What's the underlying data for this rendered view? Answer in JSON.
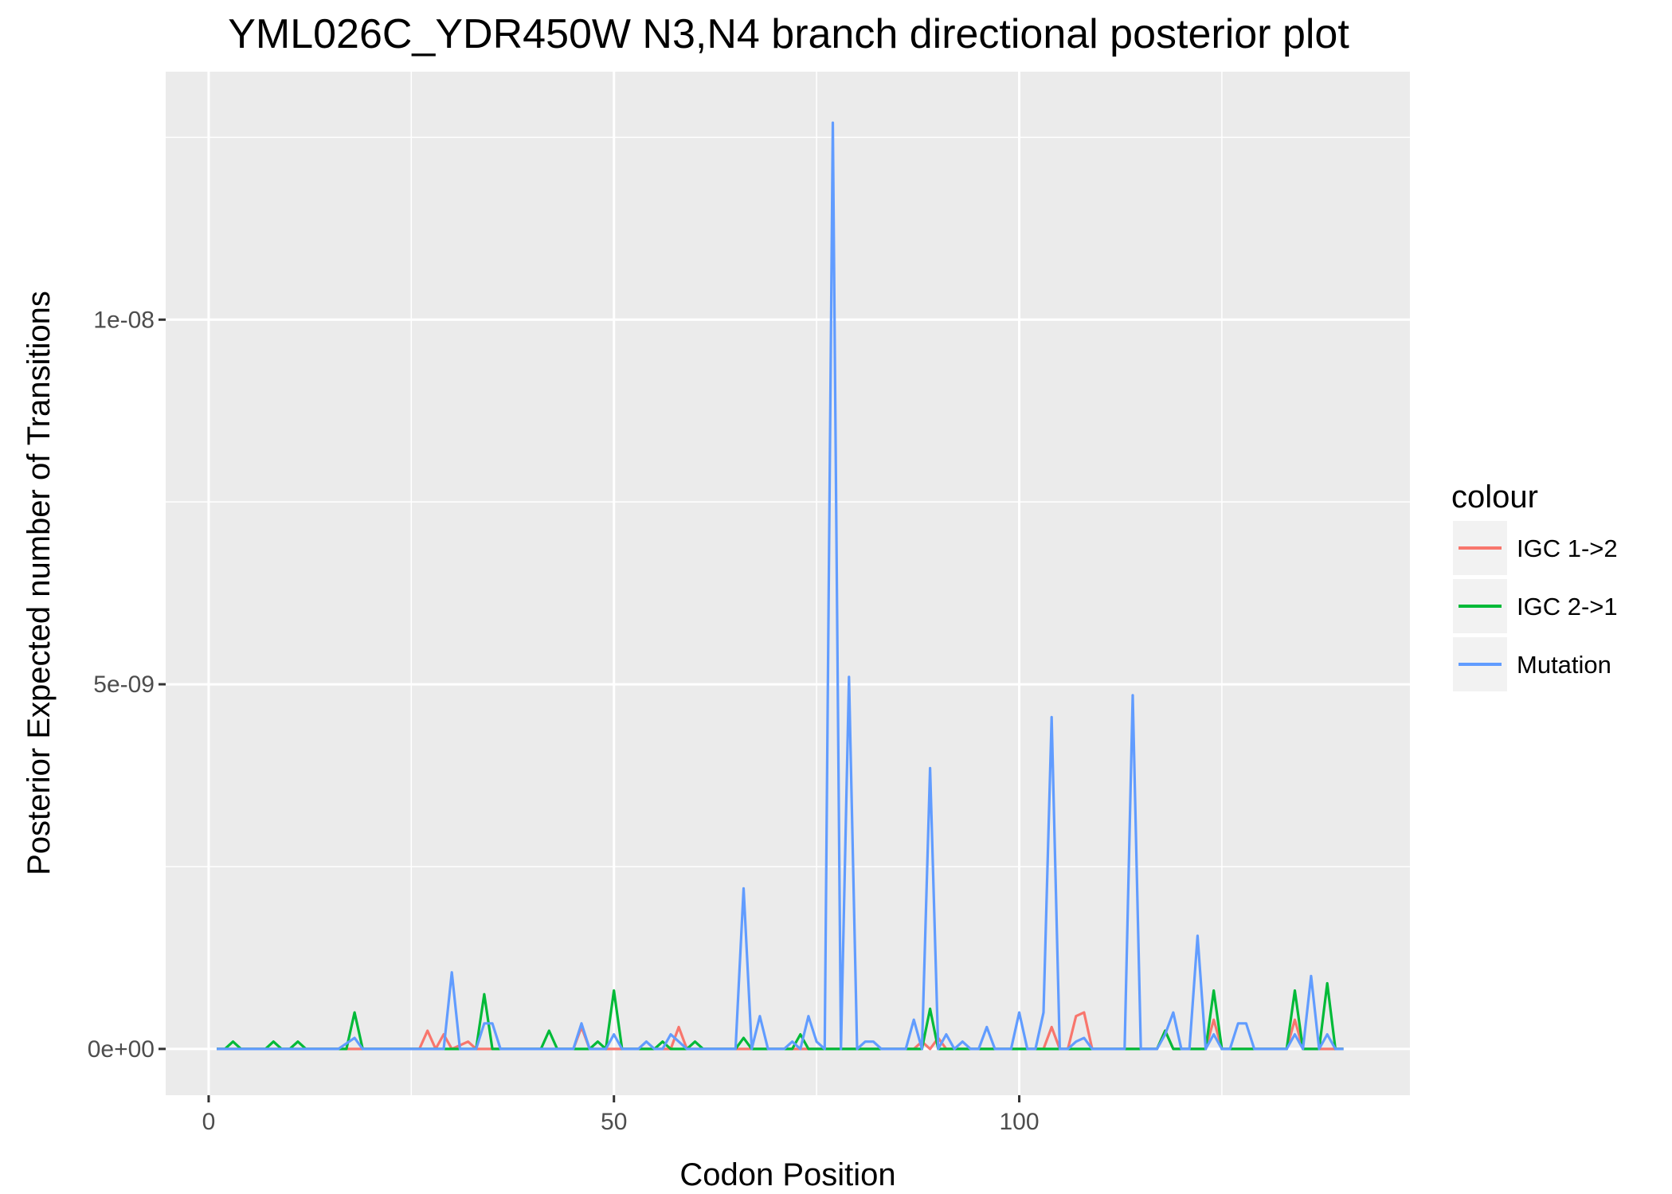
{
  "chart_data": {
    "type": "line",
    "title": "YML026C_YDR450W N3,N4 branch directional posterior plot",
    "xlabel": "Codon Position",
    "ylabel": "Posterior Expected number of Transitions",
    "xlim": [
      -5.3,
      148.2
    ],
    "ylim": [
      -6.35e-10,
      1.34e-08
    ],
    "x_ticks": [
      {
        "value": 0,
        "label": "0"
      },
      {
        "value": 50,
        "label": "50"
      },
      {
        "value": 100,
        "label": "100"
      }
    ],
    "y_ticks": [
      {
        "value": 0,
        "label": "0e+00"
      },
      {
        "value": 5e-09,
        "label": "5e-09"
      },
      {
        "value": 1e-08,
        "label": "1e-08"
      }
    ],
    "grid": true,
    "legend": {
      "title": "colour",
      "position": "right"
    },
    "colors": {
      "IGC 1->2": "#F8766D",
      "IGC 2->1": "#00BA38",
      "Mutation": "#619CFF"
    },
    "series": [
      {
        "name": "IGC 1->2",
        "color": "#F8766D",
        "points": [
          [
            1,
            0
          ],
          [
            26,
            0
          ],
          [
            27,
            2.5e-10
          ],
          [
            28,
            0
          ],
          [
            29,
            2e-10
          ],
          [
            30,
            0
          ],
          [
            32,
            1e-10
          ],
          [
            33,
            0
          ],
          [
            45,
            0
          ],
          [
            46,
            3e-10
          ],
          [
            47,
            0
          ],
          [
            57,
            0
          ],
          [
            58,
            3e-10
          ],
          [
            59,
            0
          ],
          [
            87,
            0
          ],
          [
            88,
            1e-10
          ],
          [
            89,
            0
          ],
          [
            90,
            1.5e-10
          ],
          [
            91,
            0
          ],
          [
            103,
            0
          ],
          [
            104,
            3e-10
          ],
          [
            105,
            0
          ],
          [
            106,
            0
          ],
          [
            107,
            4.5e-10
          ],
          [
            108,
            5e-10
          ],
          [
            109,
            0
          ],
          [
            117,
            0
          ],
          [
            118,
            2.5e-10
          ],
          [
            119,
            0
          ],
          [
            123,
            0
          ],
          [
            124,
            4e-10
          ],
          [
            125,
            0
          ],
          [
            133,
            0
          ],
          [
            134,
            4e-10
          ],
          [
            135,
            0
          ],
          [
            140,
            0
          ]
        ]
      },
      {
        "name": "IGC 2->1",
        "color": "#00BA38",
        "points": [
          [
            1,
            0
          ],
          [
            2,
            0
          ],
          [
            3,
            1e-10
          ],
          [
            4,
            0
          ],
          [
            7,
            0
          ],
          [
            8,
            1e-10
          ],
          [
            9,
            0
          ],
          [
            10,
            0
          ],
          [
            11,
            1e-10
          ],
          [
            12,
            0
          ],
          [
            17,
            0
          ],
          [
            18,
            5e-10
          ],
          [
            19,
            0
          ],
          [
            33,
            0
          ],
          [
            34,
            7.5e-10
          ],
          [
            35,
            0
          ],
          [
            41,
            0
          ],
          [
            42,
            2.5e-10
          ],
          [
            43,
            0
          ],
          [
            47,
            0
          ],
          [
            48,
            1e-10
          ],
          [
            49,
            0
          ],
          [
            50,
            8e-10
          ],
          [
            51,
            0
          ],
          [
            55,
            0
          ],
          [
            56,
            1e-10
          ],
          [
            57,
            0
          ],
          [
            59,
            0
          ],
          [
            60,
            1e-10
          ],
          [
            61,
            0
          ],
          [
            65,
            0
          ],
          [
            66,
            1.5e-10
          ],
          [
            67,
            0
          ],
          [
            72,
            0
          ],
          [
            73,
            2e-10
          ],
          [
            74,
            0
          ],
          [
            88,
            0
          ],
          [
            89,
            5.5e-10
          ],
          [
            90,
            0
          ],
          [
            117,
            0
          ],
          [
            118,
            2.5e-10
          ],
          [
            119,
            0
          ],
          [
            123,
            0
          ],
          [
            124,
            8e-10
          ],
          [
            125,
            0
          ],
          [
            133,
            0
          ],
          [
            134,
            8e-10
          ],
          [
            135,
            0
          ],
          [
            137,
            0
          ],
          [
            138,
            9e-10
          ],
          [
            139,
            0
          ],
          [
            140,
            0
          ]
        ]
      },
      {
        "name": "Mutation",
        "color": "#619CFF",
        "points": [
          [
            1,
            0
          ],
          [
            16,
            0
          ],
          [
            18,
            1.5e-10
          ],
          [
            19,
            0
          ],
          [
            28,
            0
          ],
          [
            29,
            0
          ],
          [
            30,
            1.05e-09
          ],
          [
            31,
            0
          ],
          [
            33,
            0
          ],
          [
            34,
            3.5e-10
          ],
          [
            35,
            3.5e-10
          ],
          [
            36,
            0
          ],
          [
            45,
            0
          ],
          [
            46,
            3.5e-10
          ],
          [
            47,
            0
          ],
          [
            49,
            0
          ],
          [
            50,
            2e-10
          ],
          [
            51,
            0
          ],
          [
            53,
            0
          ],
          [
            54,
            1e-10
          ],
          [
            55,
            0
          ],
          [
            56,
            0
          ],
          [
            57,
            2e-10
          ],
          [
            58,
            1e-10
          ],
          [
            59,
            0
          ],
          [
            65,
            0
          ],
          [
            66,
            2.2e-09
          ],
          [
            67,
            0
          ],
          [
            68,
            4.5e-10
          ],
          [
            69,
            0
          ],
          [
            71,
            0
          ],
          [
            72,
            1e-10
          ],
          [
            73,
            0
          ],
          [
            74,
            4.5e-10
          ],
          [
            75,
            1e-10
          ],
          [
            76,
            0
          ],
          [
            77,
            1.27e-08
          ],
          [
            78,
            0
          ],
          [
            79,
            5.1e-09
          ],
          [
            80,
            0
          ],
          [
            81,
            1e-10
          ],
          [
            82,
            1e-10
          ],
          [
            83,
            0
          ],
          [
            86,
            0
          ],
          [
            87,
            4e-10
          ],
          [
            88,
            0
          ],
          [
            89,
            3.85e-09
          ],
          [
            90,
            0
          ],
          [
            91,
            2e-10
          ],
          [
            92,
            0
          ],
          [
            93,
            1e-10
          ],
          [
            94,
            0
          ],
          [
            95,
            0
          ],
          [
            96,
            3e-10
          ],
          [
            97,
            0
          ],
          [
            99,
            0
          ],
          [
            100,
            5e-10
          ],
          [
            101,
            0
          ],
          [
            102,
            0
          ],
          [
            103,
            5e-10
          ],
          [
            104,
            4.55e-09
          ],
          [
            105,
            0
          ],
          [
            106,
            0
          ],
          [
            107,
            1e-10
          ],
          [
            108,
            1.5e-10
          ],
          [
            109,
            0
          ],
          [
            113,
            0
          ],
          [
            114,
            4.85e-09
          ],
          [
            115,
            0
          ],
          [
            117,
            0
          ],
          [
            118,
            2e-10
          ],
          [
            119,
            5e-10
          ],
          [
            120,
            0
          ],
          [
            121,
            0
          ],
          [
            122,
            1.55e-09
          ],
          [
            123,
            0
          ],
          [
            124,
            2e-10
          ],
          [
            125,
            0
          ],
          [
            126,
            0
          ],
          [
            127,
            3.5e-10
          ],
          [
            128,
            3.5e-10
          ],
          [
            129,
            0
          ],
          [
            133,
            0
          ],
          [
            134,
            2e-10
          ],
          [
            135,
            0
          ],
          [
            136,
            1e-09
          ],
          [
            137,
            0
          ],
          [
            138,
            2e-10
          ],
          [
            139,
            0
          ],
          [
            140,
            0
          ]
        ]
      }
    ]
  }
}
